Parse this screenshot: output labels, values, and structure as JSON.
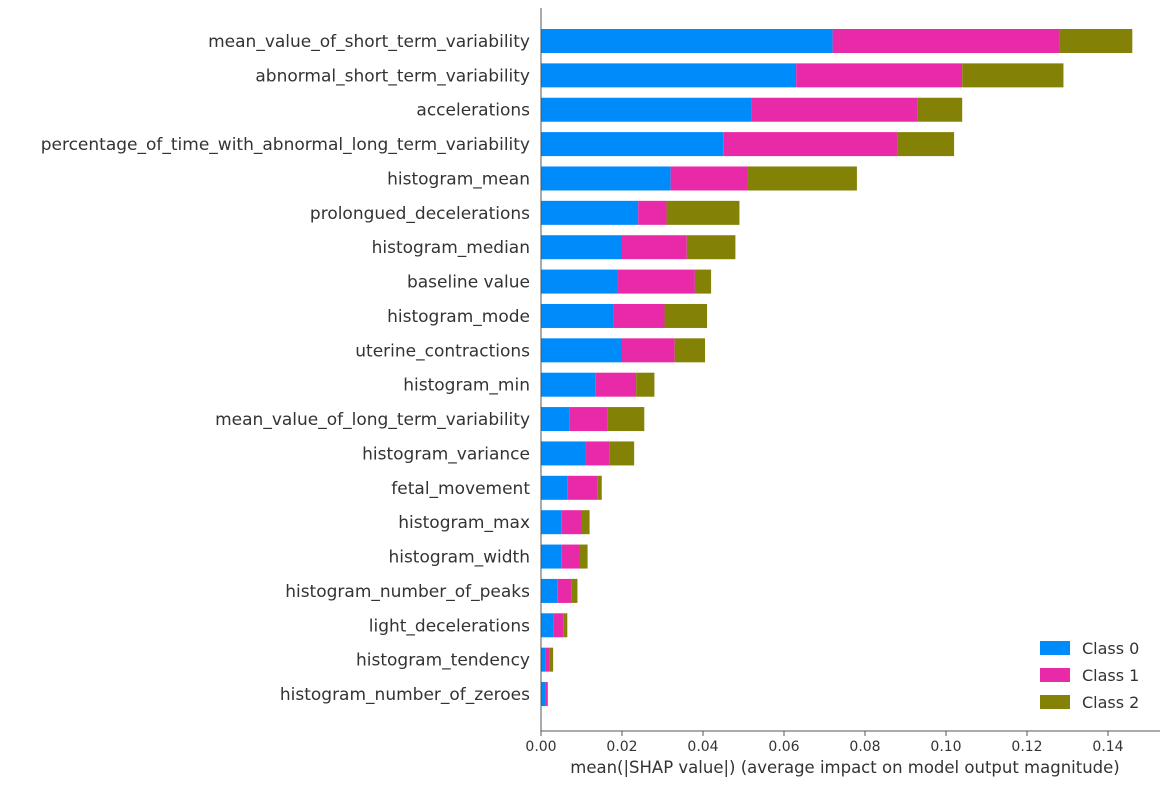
{
  "chart_data": {
    "type": "bar",
    "stacked": true,
    "orientation": "horizontal",
    "title": "",
    "xlabel": "mean(|SHAP value|) (average impact on model output magnitude)",
    "ylabel": "",
    "xlim": [
      0,
      0.15
    ],
    "xticks": [
      "0.00",
      "0.02",
      "0.04",
      "0.06",
      "0.08",
      "0.10",
      "0.12",
      "0.14"
    ],
    "grid": false,
    "legend_position": "bottom-right",
    "categories": [
      "mean_value_of_short_term_variability",
      "abnormal_short_term_variability",
      "accelerations",
      "percentage_of_time_with_abnormal_long_term_variability",
      "histogram_mean",
      "prolongued_decelerations",
      "histogram_median",
      "baseline value",
      "histogram_mode",
      "uterine_contractions",
      "histogram_min",
      "mean_value_of_long_term_variability",
      "histogram_variance",
      "fetal_movement",
      "histogram_max",
      "histogram_width",
      "histogram_number_of_peaks",
      "light_decelerations",
      "histogram_tendency",
      "histogram_number_of_zeroes"
    ],
    "series": [
      {
        "name": "Class 0",
        "color": "#008bfb",
        "values": [
          0.072,
          0.063,
          0.052,
          0.045,
          0.032,
          0.024,
          0.02,
          0.019,
          0.018,
          0.02,
          0.0135,
          0.007,
          0.011,
          0.0065,
          0.005,
          0.005,
          0.004,
          0.003,
          0.001,
          0.001
        ]
      },
      {
        "name": "Class 1",
        "color": "#ff0051",
        "values": [
          0.056,
          0.041,
          0.041,
          0.043,
          0.019,
          0.007,
          0.016,
          0.019,
          0.0125,
          0.013,
          0.01,
          0.0095,
          0.006,
          0.0075,
          0.005,
          0.0045,
          0.0035,
          0.0025,
          0.001,
          0.0005
        ]
      },
      {
        "name": "Class 2",
        "color": "#808000",
        "values": [
          0.018,
          0.025,
          0.011,
          0.014,
          0.027,
          0.018,
          0.012,
          0.004,
          0.0105,
          0.0075,
          0.0045,
          0.009,
          0.006,
          0.001,
          0.002,
          0.002,
          0.0015,
          0.001,
          0.001,
          0.0002
        ]
      }
    ]
  }
}
